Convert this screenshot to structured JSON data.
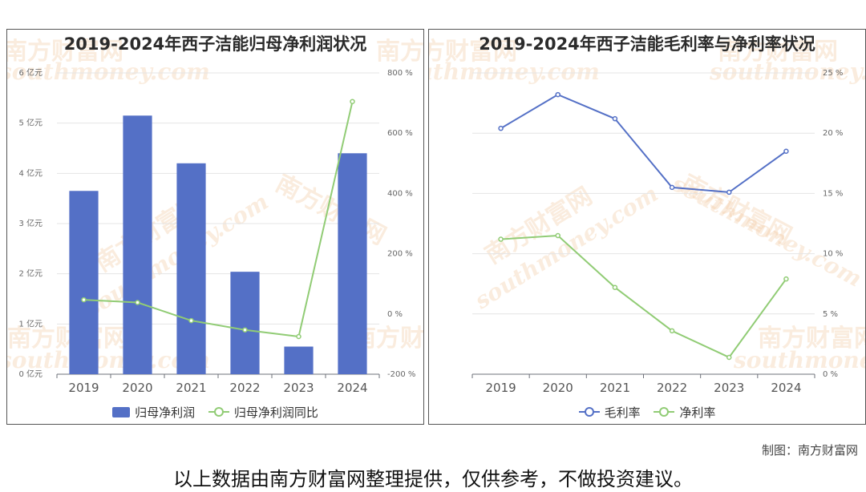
{
  "credit": "制图：南方财富网",
  "disclaimer": "以上数据由南方财富网整理提供，仅供参考，不做投资建议。",
  "watermark": {
    "cn": "南方财富网",
    "en": "southmoney.com"
  },
  "colors": {
    "blue": "#5470c6",
    "green": "#91cc75"
  },
  "chart_data": [
    {
      "type": "bar",
      "title": "2019-2024年西子洁能归母净利润状况",
      "categories": [
        "2019",
        "2020",
        "2021",
        "2022",
        "2023",
        "2024"
      ],
      "y_ticks_left": [
        "0 亿元",
        "1 亿元",
        "2 亿元",
        "3 亿元",
        "4 亿元",
        "5 亿元",
        "6 亿元"
      ],
      "y_ticks_right": [
        "-200 %",
        "0 %",
        "200 %",
        "400 %",
        "600 %",
        "800 %"
      ],
      "ylim_left": [
        0,
        6
      ],
      "ylim_right": [
        -200,
        800
      ],
      "series": [
        {
          "name": "归母净利润",
          "type": "bar",
          "axis": "left",
          "values": [
            3.65,
            5.15,
            4.2,
            2.04,
            0.55,
            4.4
          ]
        },
        {
          "name": "归母净利润同比",
          "type": "line",
          "axis": "right",
          "values": [
            47,
            38,
            -22,
            -53,
            -75,
            705
          ]
        }
      ],
      "legend_position": "bottom"
    },
    {
      "type": "line",
      "title": "2019-2024年西子洁能毛利率与净利率状况",
      "categories": [
        "2019",
        "2020",
        "2021",
        "2022",
        "2023",
        "2024"
      ],
      "y_ticks_right": [
        "0 %",
        "5 %",
        "10 %",
        "15 %",
        "20 %",
        "25 %"
      ],
      "ylim_right": [
        0,
        25
      ],
      "series": [
        {
          "name": "毛利率",
          "values": [
            20.4,
            23.2,
            21.2,
            15.5,
            15.1,
            18.5
          ]
        },
        {
          "name": "净利率",
          "values": [
            11.2,
            11.5,
            7.2,
            3.6,
            1.4,
            7.9
          ]
        }
      ],
      "legend_position": "bottom"
    }
  ]
}
